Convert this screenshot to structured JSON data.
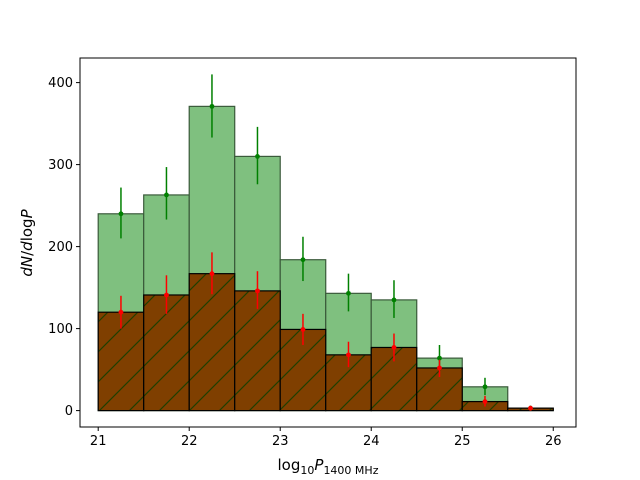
{
  "chart_data": {
    "type": "bar",
    "title": "",
    "xlabel": {
      "base": "log",
      "sub1": "10",
      "var": "P",
      "sub2": "1400 MHz"
    },
    "ylabel": {
      "d1": "dN",
      "slash": "/",
      "d2": "d",
      "log": "log",
      "var": "P"
    },
    "xlim": [
      20.8,
      26.25
    ],
    "ylim": [
      -20,
      430
    ],
    "xticks": [
      21,
      22,
      23,
      24,
      25,
      26
    ],
    "yticks": [
      0,
      100,
      200,
      300,
      400
    ],
    "bin_edges": [
      21.0,
      21.5,
      22.0,
      22.5,
      23.0,
      23.5,
      24.0,
      24.5,
      25.0,
      25.5,
      26.0
    ],
    "grid": false,
    "legend": "none",
    "series": [
      {
        "style": "filled",
        "color": "#7fc07f",
        "edge_color": "#3a5a3a",
        "values": [
          240,
          263,
          371,
          310,
          184,
          143,
          135,
          64,
          29,
          3
        ],
        "marker_x": [
          21.25,
          21.75,
          22.25,
          22.75,
          23.25,
          23.75,
          24.25,
          24.75,
          25.25,
          25.75
        ],
        "marker_y": [
          240,
          263,
          371,
          310,
          184,
          143,
          135,
          64,
          29,
          3
        ],
        "err_low": [
          210,
          233,
          333,
          276,
          158,
          121,
          113,
          52,
          19,
          0
        ],
        "err_high": [
          272,
          297,
          410,
          346,
          212,
          167,
          159,
          80,
          40,
          6
        ],
        "marker_color": "#008000"
      },
      {
        "style": "hatched",
        "color": "#7f3f00",
        "edge_color": "#000000",
        "hatch_color": "#1f3f00",
        "values": [
          120,
          141,
          167,
          146,
          99,
          68,
          77,
          52,
          11,
          3
        ],
        "marker_x": [
          21.25,
          21.75,
          22.25,
          22.75,
          23.25,
          23.75,
          24.25,
          24.75,
          25.25,
          25.75
        ],
        "marker_y": [
          120,
          141,
          167,
          146,
          99,
          68,
          77,
          52,
          11,
          3
        ],
        "err_low": [
          100,
          118,
          142,
          124,
          80,
          53,
          60,
          41,
          5,
          0
        ],
        "err_high": [
          140,
          165,
          193,
          170,
          118,
          84,
          94,
          62,
          18,
          5
        ],
        "marker_color": "#ff0000"
      }
    ]
  }
}
